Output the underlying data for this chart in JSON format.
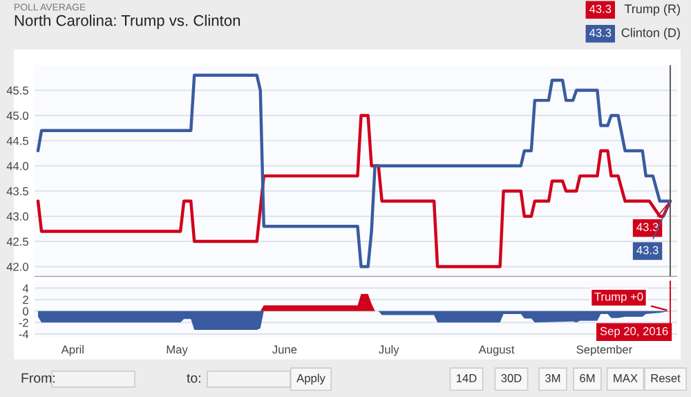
{
  "chart_data": [
    {
      "type": "line",
      "title": "North Carolina: Trump vs. Clinton",
      "subtitle": "POLL AVERAGE",
      "series": [
        {
          "name": "Trump (R)",
          "color": "#d0021b",
          "x": [
            "2016-03-22",
            "2016-03-23",
            "2016-05-02",
            "2016-05-03",
            "2016-05-05",
            "2016-05-06",
            "2016-05-24",
            "2016-05-26",
            "2016-06-22",
            "2016-06-23",
            "2016-06-25",
            "2016-06-26",
            "2016-06-28",
            "2016-06-29",
            "2016-07-14",
            "2016-07-15",
            "2016-08-02",
            "2016-08-03",
            "2016-08-08",
            "2016-08-09",
            "2016-08-11",
            "2016-08-12",
            "2016-08-16",
            "2016-08-17",
            "2016-08-20",
            "2016-08-21",
            "2016-08-24",
            "2016-08-25",
            "2016-08-30",
            "2016-08-31",
            "2016-09-02",
            "2016-09-03",
            "2016-09-05",
            "2016-09-07",
            "2016-09-14",
            "2016-09-17",
            "2016-09-18",
            "2016-09-20"
          ],
          "values": [
            43.3,
            42.7,
            42.7,
            43.3,
            43.3,
            42.5,
            42.5,
            43.8,
            43.8,
            45.0,
            45.0,
            44.0,
            44.0,
            43.3,
            43.3,
            42.0,
            42.0,
            43.5,
            43.5,
            43.0,
            43.0,
            43.3,
            43.3,
            43.7,
            43.7,
            43.5,
            43.5,
            43.8,
            43.8,
            44.3,
            44.3,
            43.8,
            43.8,
            43.3,
            43.3,
            43.0,
            43.0,
            43.3
          ],
          "value_labels": [
            null,
            null,
            null,
            null,
            null,
            null,
            null,
            null,
            null,
            null,
            null,
            null,
            null,
            null,
            null,
            null,
            null,
            null,
            null,
            null,
            null,
            null,
            null,
            null,
            null,
            null,
            null,
            null,
            null,
            null,
            null,
            null,
            null,
            null,
            null,
            null,
            null,
            "43.3"
          ]
        },
        {
          "name": "Clinton (D)",
          "color": "#3a5ba0",
          "x": [
            "2016-03-22",
            "2016-03-23",
            "2016-05-05",
            "2016-05-06",
            "2016-05-24",
            "2016-05-25",
            "2016-05-26",
            "2016-06-22",
            "2016-06-23",
            "2016-06-25",
            "2016-06-26",
            "2016-06-27",
            "2016-08-08",
            "2016-08-09",
            "2016-08-11",
            "2016-08-12",
            "2016-08-16",
            "2016-08-17",
            "2016-08-20",
            "2016-08-21",
            "2016-08-23",
            "2016-08-24",
            "2016-08-30",
            "2016-08-31",
            "2016-09-02",
            "2016-09-03",
            "2016-09-05",
            "2016-09-07",
            "2016-09-12",
            "2016-09-13",
            "2016-09-15",
            "2016-09-17",
            "2016-09-20"
          ],
          "values": [
            44.3,
            44.7,
            44.7,
            45.8,
            45.8,
            45.5,
            42.8,
            42.8,
            42.0,
            42.0,
            42.7,
            44.0,
            44.0,
            44.3,
            44.3,
            45.3,
            45.3,
            45.7,
            45.7,
            45.3,
            45.3,
            45.5,
            45.5,
            44.8,
            44.8,
            45.0,
            45.0,
            44.3,
            44.3,
            43.8,
            43.8,
            43.3,
            43.3
          ],
          "value_labels": [
            null,
            null,
            null,
            null,
            null,
            null,
            null,
            null,
            null,
            null,
            null,
            null,
            null,
            null,
            null,
            null,
            null,
            null,
            null,
            null,
            null,
            null,
            null,
            null,
            null,
            null,
            null,
            null,
            null,
            null,
            null,
            null,
            "43.3"
          ]
        }
      ],
      "xlim": [
        "2016-03-21",
        "2016-09-22"
      ],
      "ylim": [
        41.8,
        46.0
      ],
      "yticks": [
        {
          "value": 42,
          "label": "42.0"
        },
        {
          "value": 42.5,
          "label": "42.5"
        },
        {
          "value": 43,
          "label": "43.0"
        },
        {
          "value": 43.5,
          "label": "43.5"
        },
        {
          "value": 44,
          "label": "44.0"
        },
        {
          "value": 44.5,
          "label": "44.5"
        },
        {
          "value": 45,
          "label": "45.0"
        },
        {
          "value": 45.5,
          "label": "45.5"
        }
      ],
      "grid": "y",
      "legend": "top right",
      "tick_labels": "y",
      "ref_lines": [
        {
          "axis": "x",
          "value": "2016-09-20",
          "color": "#555555"
        }
      ]
    },
    {
      "type": "area",
      "x": [
        "2016-03-22",
        "2016-03-23",
        "2016-05-02",
        "2016-05-03",
        "2016-05-05",
        "2016-05-06",
        "2016-05-24",
        "2016-05-25",
        "2016-05-26",
        "2016-06-22",
        "2016-06-23",
        "2016-06-25",
        "2016-06-26",
        "2016-06-27",
        "2016-06-28",
        "2016-06-29",
        "2016-07-14",
        "2016-07-15",
        "2016-08-02",
        "2016-08-03",
        "2016-08-08",
        "2016-08-09",
        "2016-08-11",
        "2016-08-12",
        "2016-08-23",
        "2016-08-24",
        "2016-08-25",
        "2016-08-30",
        "2016-08-31",
        "2016-09-02",
        "2016-09-03",
        "2016-09-05",
        "2016-09-07",
        "2016-09-12",
        "2016-09-13",
        "2016-09-17",
        "2016-09-20"
      ],
      "series": [
        {
          "color": "#d0021b",
          "values": [
            0,
            0,
            0,
            0,
            0,
            0,
            0,
            0,
            1.0,
            1.0,
            3.0,
            3.0,
            1.3,
            0,
            0,
            0,
            0,
            0,
            0,
            0,
            0,
            0,
            0,
            0,
            0,
            0,
            0,
            0,
            0,
            0,
            0,
            0,
            0,
            0,
            0,
            0,
            0
          ]
        },
        {
          "color": "#3a5ba0",
          "values": [
            -1.0,
            -2.0,
            -2.0,
            -1.4,
            -1.4,
            -3.3,
            -3.3,
            -3.0,
            0,
            0,
            0,
            0,
            0,
            0,
            0,
            -0.7,
            -0.7,
            -2.0,
            -2.0,
            -0.5,
            -0.5,
            -1.3,
            -1.3,
            -2.0,
            -1.8,
            -2.0,
            -1.7,
            -1.7,
            -0.5,
            -0.5,
            -1.2,
            -1.2,
            -1.0,
            -1.0,
            -0.5,
            -0.3,
            0
          ]
        }
      ],
      "xlim": [
        "2016-03-21",
        "2016-09-22"
      ],
      "ylim": [
        -4.6,
        5.3
      ],
      "yticks": [
        -4,
        -2,
        0,
        2,
        4
      ],
      "xticks": [
        {
          "value": "2016-04-01",
          "label": "April"
        },
        {
          "value": "2016-05-01",
          "label": "May"
        },
        {
          "value": "2016-06-01",
          "label": "June"
        },
        {
          "value": "2016-07-01",
          "label": "July"
        },
        {
          "value": "2016-08-01",
          "label": "August"
        },
        {
          "value": "2016-09-01",
          "label": "September"
        }
      ],
      "grid": "y",
      "ref_lines": [
        {
          "axis": "x",
          "value": "2016-09-20",
          "label": "Sep 20, 2016",
          "color": "#d0021b"
        }
      ],
      "annotations": [
        {
          "text": "Trump +0",
          "x": "2016-09-20",
          "y": 0
        },
        "From:",
        "to:",
        "Apply",
        "14D",
        "30D",
        "3M",
        "6M",
        "MAX",
        "Reset"
      ]
    }
  ]
}
